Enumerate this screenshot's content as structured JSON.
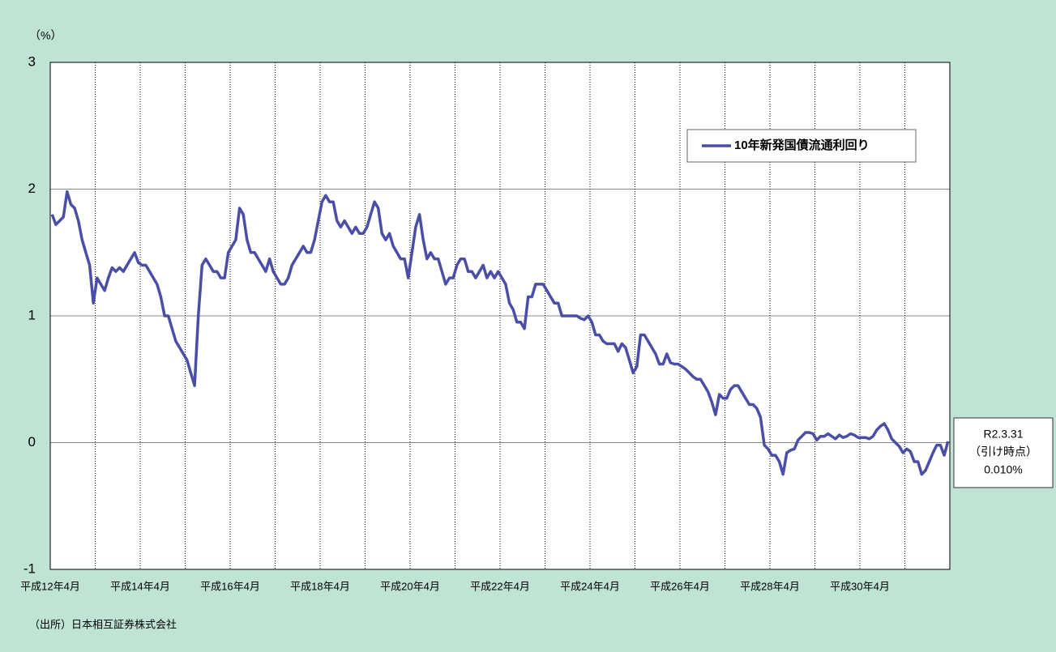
{
  "chart_data": {
    "type": "line",
    "y_label": "（%）",
    "source": "（出所）日本相互証券株式会社",
    "annotation": [
      "R2.3.31",
      "（引け時点）",
      "0.010%"
    ],
    "categories": [
      "平成12年4月",
      null,
      null,
      null,
      null,
      null,
      null,
      null,
      null,
      null,
      null,
      null,
      null,
      null,
      null,
      null,
      null,
      null,
      null,
      null,
      null,
      null,
      null,
      null,
      "平成14年4月",
      null,
      null,
      null,
      null,
      null,
      null,
      null,
      null,
      null,
      null,
      null,
      null,
      null,
      null,
      null,
      null,
      null,
      null,
      null,
      null,
      null,
      null,
      null,
      "平成16年4月",
      null,
      null,
      null,
      null,
      null,
      null,
      null,
      null,
      null,
      null,
      null,
      null,
      null,
      null,
      null,
      null,
      null,
      null,
      null,
      null,
      null,
      null,
      null,
      "平成18年4月",
      null,
      null,
      null,
      null,
      null,
      null,
      null,
      null,
      null,
      null,
      null,
      null,
      null,
      null,
      null,
      null,
      null,
      null,
      null,
      null,
      null,
      null,
      null,
      "平成20年4月",
      null,
      null,
      null,
      null,
      null,
      null,
      null,
      null,
      null,
      null,
      null,
      null,
      null,
      null,
      null,
      null,
      null,
      null,
      null,
      null,
      null,
      null,
      null,
      "平成22年4月",
      null,
      null,
      null,
      null,
      null,
      null,
      null,
      null,
      null,
      null,
      null,
      null,
      null,
      null,
      null,
      null,
      null,
      null,
      null,
      null,
      null,
      null,
      null,
      "平成24年4月",
      null,
      null,
      null,
      null,
      null,
      null,
      null,
      null,
      null,
      null,
      null,
      null,
      null,
      null,
      null,
      null,
      null,
      null,
      null,
      null,
      null,
      null,
      null,
      "平成26年4月",
      null,
      null,
      null,
      null,
      null,
      null,
      null,
      null,
      null,
      null,
      null,
      null,
      null,
      null,
      null,
      null,
      null,
      null,
      null,
      null,
      null,
      null,
      null,
      "平成28年4月",
      null,
      null,
      null,
      null,
      null,
      null,
      null,
      null,
      null,
      null,
      null,
      null,
      null,
      null,
      null,
      null,
      null,
      null,
      null,
      null,
      null,
      null,
      null,
      "平成30年4月",
      null,
      null,
      null,
      null,
      null,
      null,
      null,
      null,
      null,
      null,
      null,
      null,
      null,
      null,
      null,
      null,
      null,
      null,
      null,
      null,
      null,
      null,
      null
    ],
    "series": [
      {
        "name": "10年新発国債流通利回り",
        "color": "#4a4ea6",
        "values": [
          1.8,
          1.72,
          1.75,
          1.78,
          1.98,
          1.88,
          1.85,
          1.75,
          1.6,
          1.5,
          1.4,
          1.1,
          1.3,
          1.25,
          1.2,
          1.3,
          1.38,
          1.35,
          1.38,
          1.35,
          1.4,
          1.45,
          1.5,
          1.42,
          1.4,
          1.4,
          1.35,
          1.3,
          1.25,
          1.15,
          1.0,
          1.0,
          0.9,
          0.8,
          0.75,
          0.7,
          0.65,
          0.55,
          0.45,
          1.0,
          1.4,
          1.45,
          1.4,
          1.35,
          1.35,
          1.3,
          1.3,
          1.5,
          1.55,
          1.6,
          1.85,
          1.8,
          1.6,
          1.5,
          1.5,
          1.45,
          1.4,
          1.35,
          1.45,
          1.35,
          1.3,
          1.25,
          1.25,
          1.3,
          1.4,
          1.45,
          1.5,
          1.55,
          1.5,
          1.5,
          1.6,
          1.75,
          1.9,
          1.95,
          1.9,
          1.9,
          1.75,
          1.7,
          1.75,
          1.7,
          1.65,
          1.7,
          1.65,
          1.65,
          1.7,
          1.8,
          1.9,
          1.85,
          1.65,
          1.6,
          1.65,
          1.55,
          1.5,
          1.45,
          1.45,
          1.3,
          1.5,
          1.7,
          1.8,
          1.6,
          1.45,
          1.5,
          1.45,
          1.45,
          1.35,
          1.25,
          1.3,
          1.3,
          1.4,
          1.45,
          1.45,
          1.35,
          1.35,
          1.3,
          1.35,
          1.4,
          1.3,
          1.35,
          1.3,
          1.35,
          1.3,
          1.25,
          1.1,
          1.05,
          0.95,
          0.95,
          0.9,
          1.15,
          1.15,
          1.25,
          1.25,
          1.25,
          1.2,
          1.15,
          1.1,
          1.1,
          1.0,
          1.0,
          1.0,
          1.0,
          1.0,
          0.98,
          0.97,
          1.0,
          0.95,
          0.85,
          0.85,
          0.8,
          0.78,
          0.78,
          0.78,
          0.72,
          0.78,
          0.75,
          0.65,
          0.55,
          0.6,
          0.85,
          0.85,
          0.8,
          0.75,
          0.7,
          0.62,
          0.62,
          0.7,
          0.63,
          0.62,
          0.62,
          0.6,
          0.58,
          0.55,
          0.52,
          0.5,
          0.5,
          0.45,
          0.4,
          0.32,
          0.22,
          0.38,
          0.35,
          0.35,
          0.42,
          0.45,
          0.45,
          0.4,
          0.35,
          0.3,
          0.3,
          0.27,
          0.2,
          -0.02,
          -0.05,
          -0.1,
          -0.1,
          -0.15,
          -0.25,
          -0.08,
          -0.06,
          -0.05,
          0.02,
          0.05,
          0.08,
          0.08,
          0.07,
          0.02,
          0.05,
          0.05,
          0.07,
          0.05,
          0.03,
          0.06,
          0.04,
          0.05,
          0.07,
          0.06,
          0.04,
          0.04,
          0.04,
          0.03,
          0.05,
          0.1,
          0.13,
          0.15,
          0.1,
          0.03,
          0.0,
          -0.03,
          -0.08,
          -0.05,
          -0.07,
          -0.15,
          -0.15,
          -0.25,
          -0.22,
          -0.15,
          -0.08,
          -0.02,
          -0.02,
          -0.1,
          0.01
        ]
      }
    ],
    "ylim": [
      -1,
      3
    ],
    "yticks": [
      3,
      2,
      1,
      0,
      -1
    ],
    "grid": true
  }
}
